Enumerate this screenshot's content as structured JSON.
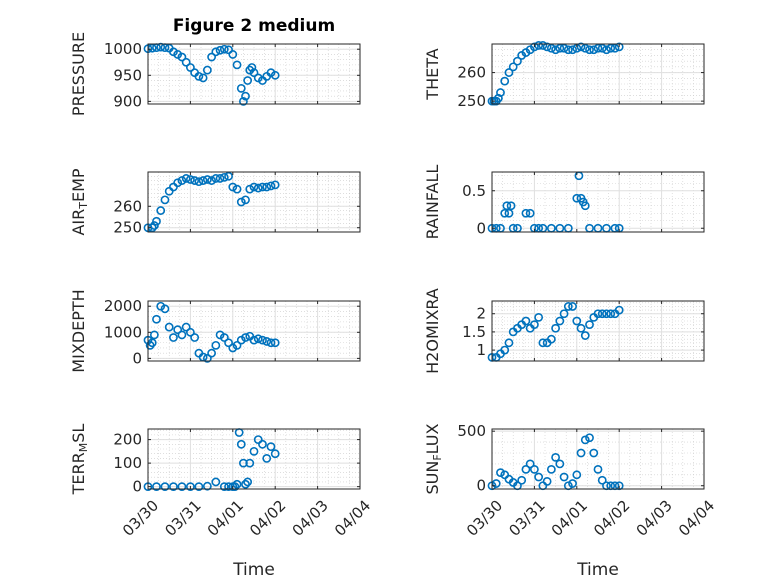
{
  "figure_title": "Figure 2 medium",
  "time_ticks": [
    "03/30",
    "03/31",
    "04/01",
    "04/02",
    "04/03",
    "04/04"
  ],
  "chart_data": [
    {
      "type": "scatter",
      "ylabel": "PRESSURE",
      "ylim": [
        895,
        1010
      ],
      "yticks": [
        900,
        950,
        1000
      ],
      "xlabel": "",
      "marker_color": "#0072BD",
      "x": [
        0,
        0.1,
        0.2,
        0.3,
        0.4,
        0.5,
        0.6,
        0.7,
        0.8,
        0.9,
        1.0,
        1.1,
        1.2,
        1.3,
        1.4,
        1.5,
        1.6,
        1.7,
        1.8,
        1.9,
        2.0,
        2.1,
        2.2,
        2.25,
        2.3,
        2.35,
        2.4,
        2.45,
        2.5,
        2.6,
        2.7,
        2.8,
        2.9,
        3.0
      ],
      "y": [
        1001,
        1002,
        1003,
        1004,
        1003,
        1002,
        995,
        990,
        985,
        975,
        965,
        955,
        948,
        945,
        960,
        985,
        995,
        998,
        1000,
        999,
        990,
        970,
        925,
        900,
        910,
        940,
        960,
        965,
        955,
        945,
        940,
        948,
        955,
        950
      ]
    },
    {
      "type": "scatter",
      "ylabel": "THETA",
      "ylim": [
        249,
        270
      ],
      "yticks": [
        250,
        260
      ],
      "xlabel": "",
      "marker_color": "#0072BD",
      "x": [
        0,
        0.05,
        0.1,
        0.15,
        0.2,
        0.3,
        0.4,
        0.5,
        0.6,
        0.7,
        0.8,
        0.9,
        1.0,
        1.1,
        1.2,
        1.3,
        1.4,
        1.5,
        1.6,
        1.7,
        1.8,
        1.9,
        2.0,
        2.1,
        2.2,
        2.3,
        2.4,
        2.5,
        2.6,
        2.7,
        2.8,
        2.9,
        3.0
      ],
      "y": [
        250,
        250,
        250,
        251,
        253,
        257,
        260,
        262,
        264,
        266,
        267,
        268,
        269,
        269.5,
        269.5,
        269,
        268.5,
        268,
        268.5,
        268.5,
        268,
        268,
        268.5,
        269,
        268.5,
        268,
        268,
        268.5,
        268.5,
        268,
        268.5,
        268.5,
        269
      ]
    },
    {
      "type": "scatter",
      "ylabel": "AIR_TEMP",
      "ylim": [
        248,
        276
      ],
      "yticks": [
        250,
        260
      ],
      "xlabel": "",
      "marker_color": "#0072BD",
      "x": [
        0,
        0.1,
        0.15,
        0.2,
        0.3,
        0.4,
        0.5,
        0.6,
        0.7,
        0.8,
        0.9,
        1.0,
        1.1,
        1.2,
        1.3,
        1.4,
        1.5,
        1.6,
        1.7,
        1.8,
        1.9,
        2.0,
        2.1,
        2.2,
        2.3,
        2.4,
        2.5,
        2.6,
        2.7,
        2.8,
        2.9,
        3.0
      ],
      "y": [
        250,
        250,
        251,
        253,
        258,
        263,
        267,
        269,
        271,
        272,
        273,
        272.5,
        272,
        271.5,
        272,
        272.5,
        272,
        273,
        273,
        273.5,
        274,
        269,
        268,
        262,
        263,
        268,
        269,
        268.5,
        269,
        269,
        269.5,
        270
      ]
    },
    {
      "type": "scatter",
      "ylabel": "RAINFALL",
      "ylim": [
        -0.05,
        0.75
      ],
      "yticks": [
        0,
        0.5
      ],
      "xlabel": "",
      "marker_color": "#0072BD",
      "x": [
        0,
        0.1,
        0.2,
        0.3,
        0.35,
        0.4,
        0.45,
        0.5,
        0.6,
        0.8,
        0.9,
        1.0,
        1.1,
        1.2,
        1.4,
        1.6,
        1.8,
        2.0,
        2.05,
        2.1,
        2.15,
        2.2,
        2.3,
        2.5,
        2.7,
        2.9,
        3.0
      ],
      "y": [
        0,
        0,
        0,
        0.2,
        0.3,
        0.2,
        0.3,
        0,
        0,
        0.2,
        0.2,
        0,
        0,
        0,
        0,
        0,
        0,
        0.4,
        0.7,
        0.4,
        0.35,
        0.3,
        0,
        0,
        0,
        0,
        0
      ]
    },
    {
      "type": "scatter",
      "ylabel": "MIXDEPTH",
      "ylim": [
        -100,
        2200
      ],
      "yticks": [
        0,
        1000,
        2000
      ],
      "xlabel": "",
      "marker_color": "#0072BD",
      "x": [
        0,
        0.05,
        0.1,
        0.15,
        0.2,
        0.3,
        0.4,
        0.5,
        0.6,
        0.7,
        0.8,
        0.9,
        1.0,
        1.1,
        1.2,
        1.3,
        1.4,
        1.5,
        1.6,
        1.7,
        1.8,
        1.9,
        2.0,
        2.1,
        2.2,
        2.3,
        2.4,
        2.5,
        2.6,
        2.7,
        2.8,
        2.9,
        3.0
      ],
      "y": [
        700,
        500,
        600,
        900,
        1500,
        2000,
        1900,
        1200,
        800,
        1100,
        900,
        1200,
        1000,
        800,
        200,
        50,
        0,
        200,
        500,
        900,
        800,
        600,
        400,
        500,
        700,
        800,
        850,
        700,
        750,
        700,
        650,
        600,
        600
      ]
    },
    {
      "type": "scatter",
      "ylabel": "H2OMIXRA",
      "ylim": [
        0.7,
        2.35
      ],
      "yticks": [
        1,
        1.5,
        2
      ],
      "xlabel": "",
      "marker_color": "#0072BD",
      "x": [
        0,
        0.1,
        0.2,
        0.3,
        0.4,
        0.5,
        0.6,
        0.7,
        0.8,
        0.9,
        1.0,
        1.1,
        1.2,
        1.3,
        1.4,
        1.5,
        1.6,
        1.7,
        1.8,
        1.9,
        2.0,
        2.1,
        2.2,
        2.3,
        2.4,
        2.5,
        2.6,
        2.7,
        2.8,
        2.9,
        3.0
      ],
      "y": [
        0.8,
        0.8,
        0.9,
        1.0,
        1.2,
        1.5,
        1.6,
        1.7,
        1.8,
        1.6,
        1.7,
        1.9,
        1.2,
        1.2,
        1.3,
        1.6,
        1.8,
        2.0,
        2.2,
        2.2,
        1.8,
        1.6,
        1.4,
        1.7,
        1.9,
        2.0,
        2.0,
        2.0,
        2.0,
        2.0,
        2.1
      ]
    },
    {
      "type": "scatter",
      "ylabel": "TERR_MSL",
      "ylim": [
        -10,
        245
      ],
      "yticks": [
        0,
        100,
        200
      ],
      "xlabel": "Time",
      "marker_color": "#0072BD",
      "x": [
        0,
        0.2,
        0.4,
        0.6,
        0.8,
        1.0,
        1.2,
        1.4,
        1.6,
        1.8,
        1.9,
        2.0,
        2.05,
        2.1,
        2.15,
        2.2,
        2.25,
        2.3,
        2.35,
        2.4,
        2.5,
        2.6,
        2.7,
        2.8,
        2.9,
        3.0
      ],
      "y": [
        0,
        0,
        0,
        0,
        0,
        0,
        0,
        2,
        20,
        0,
        0,
        0,
        0,
        10,
        230,
        180,
        100,
        10,
        20,
        100,
        150,
        200,
        180,
        120,
        170,
        140
      ]
    },
    {
      "type": "scatter",
      "ylabel": "SUN_FLUX",
      "ylim": [
        -30,
        520
      ],
      "yticks": [
        0,
        500
      ],
      "xlabel": "Time",
      "marker_color": "#0072BD",
      "x": [
        0,
        0.1,
        0.2,
        0.3,
        0.4,
        0.5,
        0.6,
        0.7,
        0.8,
        0.9,
        1.0,
        1.1,
        1.2,
        1.3,
        1.4,
        1.5,
        1.6,
        1.7,
        1.8,
        1.9,
        2.0,
        2.1,
        2.2,
        2.3,
        2.4,
        2.5,
        2.6,
        2.7,
        2.8,
        2.9,
        3.0
      ],
      "y": [
        0,
        20,
        120,
        100,
        60,
        30,
        0,
        50,
        150,
        200,
        150,
        80,
        0,
        40,
        150,
        260,
        200,
        80,
        0,
        20,
        100,
        300,
        420,
        440,
        300,
        150,
        50,
        0,
        0,
        0,
        0
      ]
    }
  ]
}
